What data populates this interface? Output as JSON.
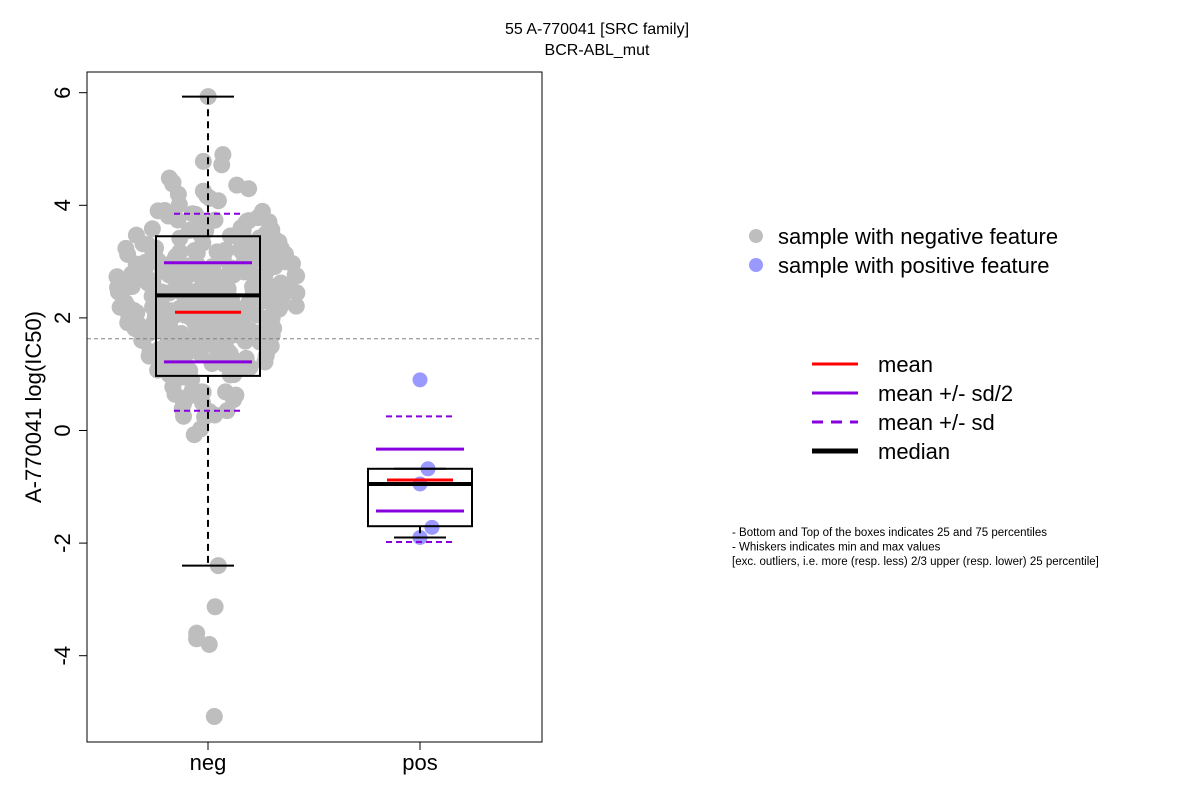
{
  "chart_data": {
    "type": "box",
    "title": "55 A-770041 [SRC family]",
    "subtitle": "BCR-ABL_mut",
    "ylabel": "A-770041 log(IC50)",
    "xlabel": "",
    "ylim": [
      -5.4,
      6.5
    ],
    "yticks": [
      -4,
      -2,
      0,
      2,
      4,
      6
    ],
    "categories": [
      "neg",
      "pos"
    ],
    "reference_line": 1.63,
    "grid": false,
    "legend_position": "right",
    "colors": {
      "neg_points": "#bebebe",
      "pos_points": "#9999ff",
      "mean": "#ff0000",
      "sd": "#8800dd",
      "median": "#000000",
      "reference": "#808080"
    },
    "groups": [
      {
        "name": "neg",
        "box": {
          "q1": 0.97,
          "median": 2.4,
          "q3": 3.45,
          "whisker_low": -2.4,
          "whisker_high": 5.93
        },
        "mean": 2.1,
        "sd_half_low": 1.22,
        "sd_half_high": 2.98,
        "sd_low": 0.35,
        "sd_high": 3.85,
        "n_points": 360,
        "extremes": [
          5.93,
          4.9,
          4.78,
          4.72,
          -2.4,
          -3.13,
          -3.6,
          -3.7,
          -3.8,
          -5.08
        ]
      },
      {
        "name": "pos",
        "box": {
          "q1": -1.7,
          "median": -0.95,
          "q3": -0.68,
          "whisker_low": -1.9,
          "whisker_high": -0.68
        },
        "mean": -0.88,
        "sd_half_low": -1.43,
        "sd_half_high": -0.33,
        "sd_low": -1.98,
        "sd_high": 0.25,
        "points": [
          0.9,
          -0.68,
          -0.95,
          -1.72,
          -1.9
        ]
      }
    ],
    "legend_points": [
      {
        "label": "sample with negative feature",
        "color": "#bebebe"
      },
      {
        "label": "sample with positive feature",
        "color": "#9999ff"
      }
    ],
    "legend_lines": [
      {
        "label": "mean",
        "color": "#ff0000",
        "style": "solid"
      },
      {
        "label": "mean +/- sd/2",
        "color": "#8800dd",
        "style": "solid"
      },
      {
        "label": "mean +/- sd",
        "color": "#8800dd",
        "style": "dashed"
      },
      {
        "label": "median",
        "color": "#000000",
        "style": "bold"
      }
    ],
    "notes": [
      "- Bottom and Top of the boxes indicates 25 and 75 percentiles",
      "- Whiskers indicates min and max values",
      "[exc. outliers, i.e. more (resp. less) 2/3 upper (resp. lower) 25 percentile]"
    ]
  }
}
